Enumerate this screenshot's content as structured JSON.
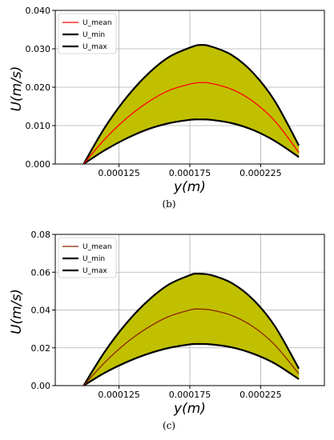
{
  "chart_data": [
    {
      "type": "area",
      "panel_label": "(b)",
      "xlabel": "y(m)",
      "ylabel": "U(m/s)",
      "xlim": [
        8e-05,
        0.00027
      ],
      "ylim": [
        0,
        0.04
      ],
      "xticks": [
        0.000125,
        0.000175,
        0.000225
      ],
      "xtick_labels": [
        "0.000125",
        "0.000175",
        "0.000225"
      ],
      "yticks": [
        0,
        0.01,
        0.02,
        0.03,
        0.04
      ],
      "ytick_labels": [
        "0.000",
        "0.010",
        "0.020",
        "0.030",
        "0.040"
      ],
      "grid": true,
      "legend_position": "top-left",
      "fill_color": "#c0c000",
      "x": [
        0.0001,
        0.000115,
        0.00013,
        0.000145,
        0.00016,
        0.000175,
        0.000182,
        0.00019,
        0.000205,
        0.00022,
        0.000235,
        0.000252
      ],
      "series": [
        {
          "name": "U_mean",
          "color": "#ff0000",
          "values": [
            0.0,
            0.0065,
            0.0118,
            0.016,
            0.0191,
            0.0208,
            0.0212,
            0.021,
            0.0194,
            0.0162,
            0.0112,
            0.003
          ]
        },
        {
          "name": "U_min",
          "color": "#000000",
          "values": [
            0.0,
            0.0036,
            0.0066,
            0.009,
            0.0106,
            0.0115,
            0.0116,
            0.0115,
            0.0106,
            0.0088,
            0.006,
            0.0018
          ]
        },
        {
          "name": "U_max",
          "color": "#000000",
          "values": [
            0.0,
            0.0095,
            0.0172,
            0.0233,
            0.0278,
            0.0303,
            0.031,
            0.0306,
            0.0283,
            0.0236,
            0.0164,
            0.0048
          ]
        }
      ]
    },
    {
      "type": "area",
      "panel_label": "(c)",
      "xlabel": "y(m)",
      "ylabel": "U(m/s)",
      "xlim": [
        8e-05,
        0.00027
      ],
      "ylim": [
        0,
        0.08
      ],
      "xticks": [
        0.000125,
        0.000175,
        0.000225
      ],
      "xtick_labels": [
        "0.000125",
        "0.000175",
        "0.000225"
      ],
      "yticks": [
        0,
        0.02,
        0.04,
        0.06,
        0.08
      ],
      "ytick_labels": [
        "0.00",
        "0.02",
        "0.04",
        "0.06",
        "0.08"
      ],
      "grid": true,
      "legend_position": "top-left",
      "fill_color": "#c0c000",
      "x": [
        0.0001,
        0.000115,
        0.00013,
        0.000145,
        0.00016,
        0.000175,
        0.00018,
        0.00019,
        0.000205,
        0.00022,
        0.000235,
        0.000252
      ],
      "series": [
        {
          "name": "U_mean",
          "color": "#8b2500",
          "values": [
            0.0,
            0.0123,
            0.0225,
            0.0305,
            0.0365,
            0.04,
            0.0405,
            0.04,
            0.037,
            0.031,
            0.0215,
            0.0062
          ]
        },
        {
          "name": "U_min",
          "color": "#000000",
          "values": [
            0.0,
            0.0068,
            0.0123,
            0.0167,
            0.0199,
            0.0218,
            0.022,
            0.0218,
            0.0202,
            0.0168,
            0.0117,
            0.0034
          ]
        },
        {
          "name": "U_max",
          "color": "#000000",
          "values": [
            0.0,
            0.018,
            0.0328,
            0.0446,
            0.0534,
            0.0584,
            0.0592,
            0.0585,
            0.0541,
            0.0453,
            0.0315,
            0.009
          ]
        }
      ]
    }
  ]
}
